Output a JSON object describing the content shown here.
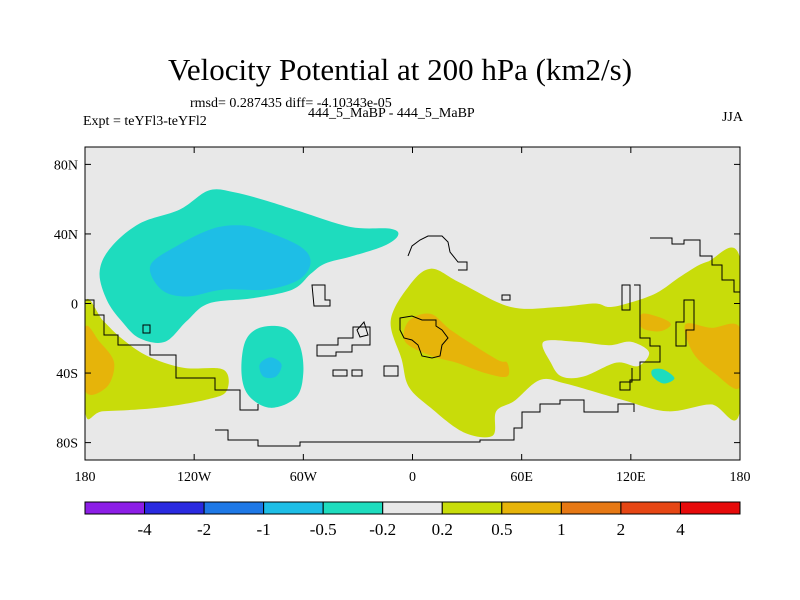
{
  "header": {
    "title": "Velocity Potential at 200 hPa (km2/s)",
    "stats": "rmsd= 0.287435 diff= -4.10343e-05",
    "experiment": "Expt = teYFl3-teYFl2",
    "case": "444_5_MaBP - 444_5_MaBP",
    "season": "JJA"
  },
  "chart_data": {
    "type": "heatmap",
    "title": "Velocity Potential at 200 hPa (km2/s)",
    "xlabel": "",
    "ylabel": "",
    "xlim": [
      -180,
      180
    ],
    "ylim": [
      -90,
      90
    ],
    "x_ticks": [
      {
        "value": -180,
        "label": "180"
      },
      {
        "value": -120,
        "label": "120W"
      },
      {
        "value": -60,
        "label": "60W"
      },
      {
        "value": 0,
        "label": "0"
      },
      {
        "value": 60,
        "label": "60E"
      },
      {
        "value": 120,
        "label": "120E"
      },
      {
        "value": 180,
        "label": "180"
      }
    ],
    "y_ticks": [
      {
        "value": 80,
        "label": "80N"
      },
      {
        "value": 40,
        "label": "40N"
      },
      {
        "value": 0,
        "label": "0"
      },
      {
        "value": -40,
        "label": "40S"
      },
      {
        "value": -80,
        "label": "80S"
      }
    ],
    "background_color": "#e8e8e8",
    "levels": [
      "-4",
      "-2",
      "-1",
      "-0.5",
      "-0.2",
      "0.2",
      "0.5",
      "1",
      "2",
      "4"
    ],
    "colors": [
      "#8c1ee6",
      "#2a2ae0",
      "#1e78e6",
      "#1ebee6",
      "#1edcbe",
      "#e8e8e8",
      "#c8dc0a",
      "#e6b40a",
      "#e67814",
      "#e64614",
      "#e60a0a"
    ],
    "regions": [
      {
        "name": "tropical-west-pacific-negative",
        "level": "-0.5",
        "color": "#1edcbe",
        "points": [
          [
            -166,
            32
          ],
          [
            -150,
            46
          ],
          [
            -128,
            54
          ],
          [
            -112,
            65
          ],
          [
            -98,
            64
          ],
          [
            -80,
            59
          ],
          [
            -62,
            53
          ],
          [
            -34,
            44
          ],
          [
            -12,
            43
          ],
          [
            -8,
            39
          ],
          [
            -16,
            33
          ],
          [
            -34,
            27
          ],
          [
            -48,
            23
          ],
          [
            -56,
            17
          ],
          [
            -66,
            8
          ],
          [
            -88,
            3
          ],
          [
            -112,
            0
          ],
          [
            -124,
            -10
          ],
          [
            -136,
            -22
          ],
          [
            -150,
            -20
          ],
          [
            -160,
            -10
          ],
          [
            -168,
            2
          ],
          [
            -172,
            18
          ]
        ]
      },
      {
        "name": "west-pacific-core-negative",
        "level": "-1",
        "color": "#1ebee6",
        "points": [
          [
            -144,
            22
          ],
          [
            -128,
            34
          ],
          [
            -110,
            43
          ],
          [
            -95,
            45
          ],
          [
            -82,
            42
          ],
          [
            -62,
            33
          ],
          [
            -56,
            24
          ],
          [
            -62,
            14
          ],
          [
            -80,
            8
          ],
          [
            -104,
            8
          ],
          [
            -124,
            4
          ],
          [
            -138,
            8
          ]
        ]
      },
      {
        "name": "south-pacific-negative",
        "level": "-0.5",
        "color": "#1edcbe",
        "points": [
          [
            -92,
            -22
          ],
          [
            -84,
            -14
          ],
          [
            -70,
            -14
          ],
          [
            -62,
            -24
          ],
          [
            -60,
            -40
          ],
          [
            -64,
            -54
          ],
          [
            -78,
            -60
          ],
          [
            -90,
            -53
          ],
          [
            -94,
            -40
          ]
        ]
      },
      {
        "name": "south-pacific-core-negative",
        "level": "-1",
        "color": "#1ebee6",
        "points": [
          [
            -84,
            -35
          ],
          [
            -78,
            -31
          ],
          [
            -72,
            -35
          ],
          [
            -75,
            -42
          ],
          [
            -82,
            -42
          ]
        ]
      },
      {
        "name": "southwest-pacific-positive",
        "level": "0.2",
        "color": "#c8dc0a",
        "points": [
          [
            -180,
            0
          ],
          [
            -170,
            -10
          ],
          [
            -160,
            -20
          ],
          [
            -146,
            -30
          ],
          [
            -126,
            -37
          ],
          [
            -104,
            -38
          ],
          [
            -102,
            -50
          ],
          [
            -112,
            -55
          ],
          [
            -140,
            -60
          ],
          [
            -170,
            -62
          ],
          [
            -180,
            -62
          ]
        ]
      },
      {
        "name": "southwest-pacific-core-positive",
        "level": "0.5",
        "color": "#e6b40a",
        "points": [
          [
            -180,
            -14
          ],
          [
            -172,
            -22
          ],
          [
            -164,
            -34
          ],
          [
            -168,
            -48
          ],
          [
            -180,
            -50
          ]
        ]
      },
      {
        "name": "indian-ocean-positive",
        "level": "0.2",
        "color": "#c8dc0a",
        "points": [
          [
            -12,
            -10
          ],
          [
            -2,
            10
          ],
          [
            10,
            20
          ],
          [
            26,
            12
          ],
          [
            54,
            -2
          ],
          [
            80,
            -2
          ],
          [
            100,
            0
          ],
          [
            108,
            -2
          ],
          [
            118,
            0
          ],
          [
            134,
            6
          ],
          [
            148,
            16
          ],
          [
            162,
            24
          ],
          [
            180,
            26
          ],
          [
            180,
            -62
          ],
          [
            164,
            -58
          ],
          [
            140,
            -62
          ],
          [
            114,
            -55
          ],
          [
            84,
            -46
          ],
          [
            70,
            -44
          ],
          [
            56,
            -56
          ],
          [
            46,
            -62
          ],
          [
            44,
            -76
          ],
          [
            28,
            -74
          ],
          [
            10,
            -60
          ],
          [
            -2,
            -48
          ],
          [
            -6,
            -32
          ]
        ]
      },
      {
        "name": "indian-ocean-gap",
        "level": "0.2",
        "color": "#e8e8e8",
        "points": [
          [
            72,
            -22
          ],
          [
            90,
            -22
          ],
          [
            108,
            -24
          ],
          [
            120,
            -22
          ],
          [
            130,
            -28
          ],
          [
            124,
            -36
          ],
          [
            112,
            -34
          ],
          [
            94,
            -42
          ],
          [
            82,
            -42
          ],
          [
            76,
            -34
          ]
        ]
      },
      {
        "name": "indian-ocean-core-positive",
        "level": "0.5",
        "color": "#e6b40a",
        "points": [
          [
            -2,
            -10
          ],
          [
            10,
            -6
          ],
          [
            22,
            -16
          ],
          [
            46,
            -32
          ],
          [
            52,
            -34
          ],
          [
            52,
            -42
          ],
          [
            40,
            -40
          ],
          [
            24,
            -34
          ],
          [
            10,
            -30
          ],
          [
            -4,
            -22
          ]
        ]
      },
      {
        "name": "maritime-continent-core-positive",
        "level": "0.5",
        "color": "#e6b40a",
        "points": [
          [
            126,
            -6
          ],
          [
            136,
            -8
          ],
          [
            142,
            -12
          ],
          [
            136,
            -16
          ],
          [
            126,
            -14
          ]
        ]
      },
      {
        "name": "east-pacific-core-positive",
        "level": "0.5",
        "color": "#e6b40a",
        "points": [
          [
            150,
            -12
          ],
          [
            164,
            -14
          ],
          [
            180,
            -14
          ],
          [
            180,
            -48
          ],
          [
            166,
            -40
          ],
          [
            154,
            -28
          ]
        ]
      },
      {
        "name": "southern-ocean-negative-spot",
        "level": "-0.5",
        "color": "#1edcbe",
        "points": [
          [
            132,
            -38
          ],
          [
            138,
            -38
          ],
          [
            144,
            -43
          ],
          [
            138,
            -46
          ],
          [
            132,
            -42
          ]
        ]
      },
      {
        "name": "southern-ocean-gap",
        "level": "0.2",
        "color": "#e8e8e8",
        "points": [
          [
            74,
            -58
          ],
          [
            88,
            -54
          ],
          [
            104,
            -56
          ],
          [
            112,
            -70
          ],
          [
            100,
            -72
          ],
          [
            80,
            -68
          ]
        ]
      }
    ]
  },
  "colorbar": {
    "colors": [
      "#8c1ee6",
      "#2a2ae0",
      "#1e78e6",
      "#1ebee6",
      "#1edcbe",
      "#e8e8e8",
      "#c8dc0a",
      "#e6b40a",
      "#e67814",
      "#e64614",
      "#e60a0a"
    ],
    "labels": [
      "-4",
      "-2",
      "-1",
      "-0.5",
      "-0.2",
      "0.2",
      "0.5",
      "1",
      "2",
      "4"
    ]
  }
}
